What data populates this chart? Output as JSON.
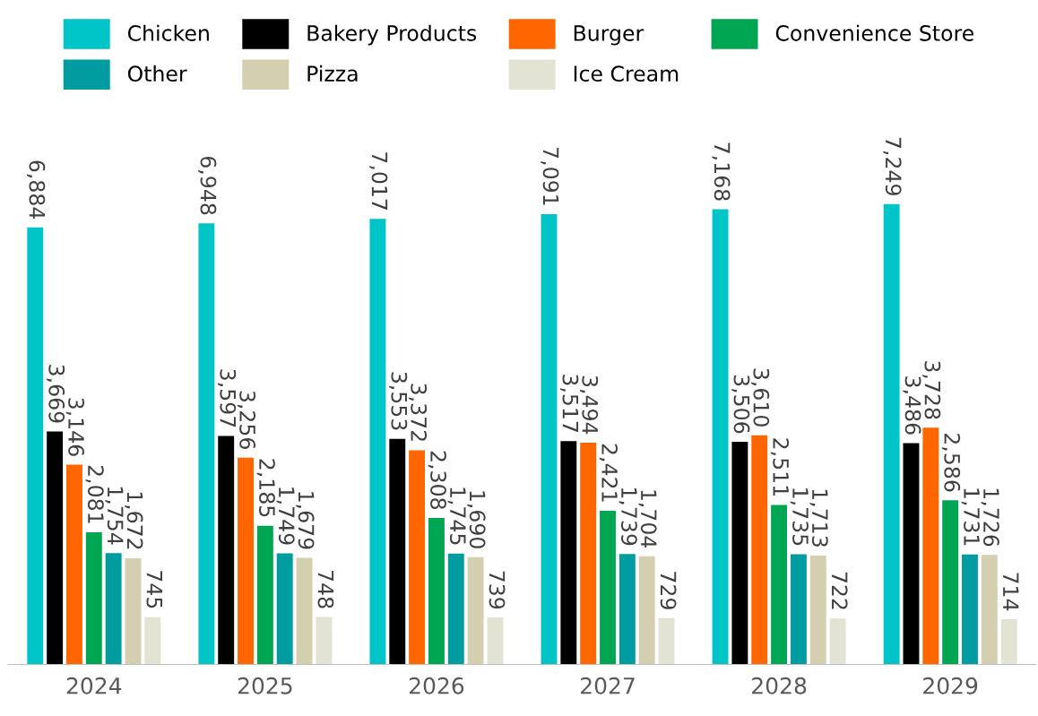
{
  "chart_data": {
    "type": "bar",
    "categories": [
      "2024",
      "2025",
      "2026",
      "2027",
      "2028",
      "2029"
    ],
    "series": [
      {
        "name": "Chicken",
        "color": "#00c5c8",
        "values": [
          6884,
          6948,
          7017,
          7091,
          7168,
          7249
        ],
        "value_labels": [
          "6,884",
          "6,948",
          "7,017",
          "7,091",
          "7,168",
          "7,249"
        ]
      },
      {
        "name": "Bakery Products",
        "color": "#000000",
        "values": [
          3669,
          3597,
          3553,
          3517,
          3506,
          3486
        ],
        "value_labels": [
          "3,669",
          "3,597",
          "3,553",
          "3,517",
          "3,506",
          "3,486"
        ]
      },
      {
        "name": "Burger",
        "color": "#ff6600",
        "values": [
          3146,
          3256,
          3372,
          3494,
          3610,
          3728
        ],
        "value_labels": [
          "3,146",
          "3,256",
          "3,372",
          "3,494",
          "3,610",
          "3,728"
        ]
      },
      {
        "name": "Convenience Store",
        "color": "#00a651",
        "values": [
          2081,
          2185,
          2308,
          2421,
          2511,
          2586
        ],
        "value_labels": [
          "2,081",
          "2,185",
          "2,308",
          "2,421",
          "2,511",
          "2,586"
        ]
      },
      {
        "name": "Other",
        "color": "#009ca0",
        "values": [
          1754,
          1749,
          1745,
          1739,
          1735,
          1731
        ],
        "value_labels": [
          "1,754",
          "1,749",
          "1,745",
          "1,739",
          "1,735",
          "1,731"
        ]
      },
      {
        "name": "Pizza",
        "color": "#d3cfb0",
        "values": [
          1672,
          1679,
          1690,
          1704,
          1713,
          1726
        ],
        "value_labels": [
          "1,672",
          "1,679",
          "1,690",
          "1,704",
          "1,713",
          "1,726"
        ]
      },
      {
        "name": "Ice Cream",
        "color": "#e2e3d3",
        "values": [
          745,
          748,
          739,
          729,
          722,
          714
        ],
        "value_labels": [
          "745",
          "748",
          "739",
          "729",
          "722",
          "714"
        ]
      }
    ],
    "legend": "top",
    "grid": false
  }
}
